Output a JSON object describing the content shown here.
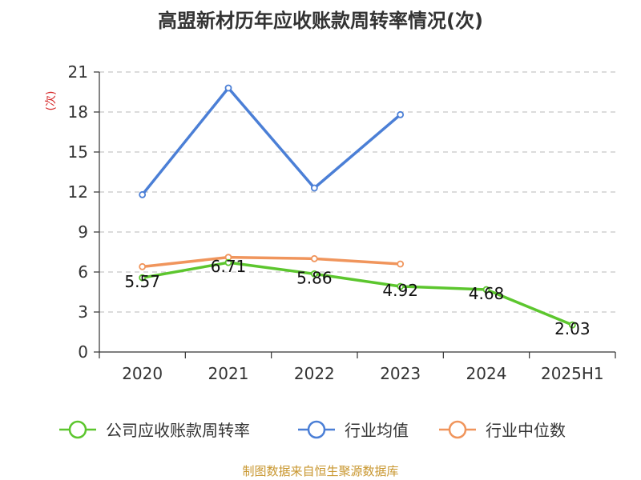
{
  "chart_data": {
    "type": "line",
    "title": "高盟新材历年应收账款周转率情况(次)",
    "unit_label": "(次)",
    "categories": [
      "2020",
      "2021",
      "2022",
      "2023",
      "2024",
      "2025H1"
    ],
    "ylim": [
      0,
      21
    ],
    "yticks": [
      "0",
      "3",
      "6",
      "9",
      "12",
      "15",
      "18",
      "21"
    ],
    "grid": true,
    "legend_position": "bottom",
    "series": [
      {
        "name": "公司应收账款周转率",
        "color": "#5cc62e",
        "values": [
          5.57,
          6.71,
          5.86,
          4.92,
          4.68,
          2.03
        ],
        "labels": [
          "5.57",
          "6.71",
          "5.86",
          "4.92",
          "4.68",
          "2.03"
        ]
      },
      {
        "name": "行业均值",
        "color": "#4b7fd6",
        "values": [
          11.8,
          19.8,
          12.3,
          17.8,
          null,
          null
        ]
      },
      {
        "name": "行业中位数",
        "color": "#f0955c",
        "values": [
          6.4,
          7.1,
          7.0,
          6.6,
          null,
          null
        ]
      }
    ],
    "source": "制图数据来自恒生聚源数据库"
  }
}
